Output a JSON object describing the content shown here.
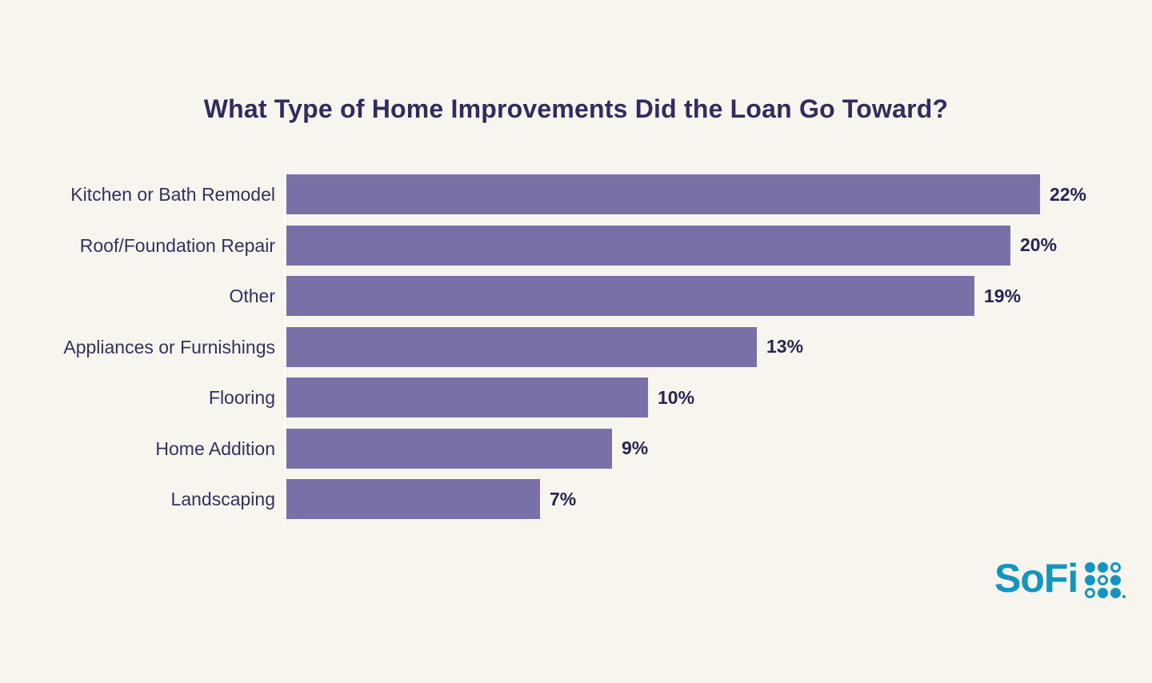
{
  "page": {
    "background_color": "#f8f5ee"
  },
  "chart_data": {
    "type": "bar",
    "orientation": "horizontal",
    "title": "What Type of Home Improvements Did the Loan Go Toward?",
    "categories": [
      "Kitchen or Bath Remodel",
      "Roof/Foundation Repair",
      "Other",
      "Appliances or Furnishings",
      "Flooring",
      "Home Addition",
      "Landscaping"
    ],
    "values": [
      22,
      20,
      19,
      13,
      10,
      9,
      7
    ],
    "value_labels": [
      "22%",
      "20%",
      "19%",
      "13%",
      "10%",
      "9%",
      "7%"
    ],
    "xlabel": "",
    "ylabel": "",
    "xlim": [
      0,
      22.1
    ],
    "grid": false,
    "legend": false,
    "bar_color": "#7a70a8",
    "label_color": "#35305f",
    "value_label_color": "#2a2454",
    "title_color": "#312b5f"
  },
  "branding": {
    "logo_text": "SoFi",
    "logo_color": "#1295bf",
    "logo_dot_pattern": [
      "filled",
      "filled",
      "outline",
      "filled",
      "outline",
      "filled",
      "outline",
      "filled",
      "filled"
    ]
  }
}
